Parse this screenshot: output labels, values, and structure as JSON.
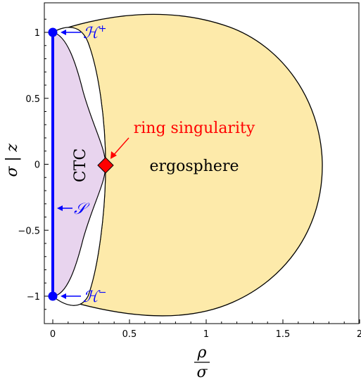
{
  "chart_data": {
    "type": "diagram",
    "xlabel_num": "ρ",
    "xlabel_den": "σ",
    "ylabel_left": "σ",
    "ylabel_bar": "|",
    "ylabel_right": "z",
    "xlim": [
      0,
      2
    ],
    "ylim": [
      -1.2,
      1.2
    ],
    "x_ticks": [
      {
        "value": 0,
        "label": "0"
      },
      {
        "value": 0.5,
        "label": "0.5"
      },
      {
        "value": 1,
        "label": "1"
      },
      {
        "value": 1.5,
        "label": "1.5"
      },
      {
        "value": 2,
        "label": "2"
      }
    ],
    "y_ticks": [
      {
        "value": 1,
        "label": "1"
      },
      {
        "value": 0.5,
        "label": "0.5"
      },
      {
        "value": 0,
        "label": "0"
      },
      {
        "value": -0.5,
        "label": "−0.5"
      },
      {
        "value": -1,
        "label": "−1"
      }
    ],
    "regions": {
      "ergosphere_label": "ergosphere",
      "ctc_label": "CTC",
      "ergosphere_color": "#fdeaaa",
      "ctc_color": "#e8d4ee",
      "outer_extent_rho": 1.84,
      "ring_rho": 0.35
    },
    "annotations": {
      "ring_label": "ring singularity",
      "ring_color": "#ff0000",
      "horizon_plus_main": "ℋ",
      "horizon_plus_sup": "+",
      "horizon_minus_main": "ℋ",
      "horizon_minus_sup": "−",
      "segment_label": "𝒮",
      "blue_color": "#0000ff"
    },
    "points": [
      {
        "name": "H+",
        "rho": 0,
        "z": 1
      },
      {
        "name": "H-",
        "rho": 0,
        "z": -1
      },
      {
        "name": "ring",
        "rho": 0.35,
        "z": 0
      }
    ]
  }
}
